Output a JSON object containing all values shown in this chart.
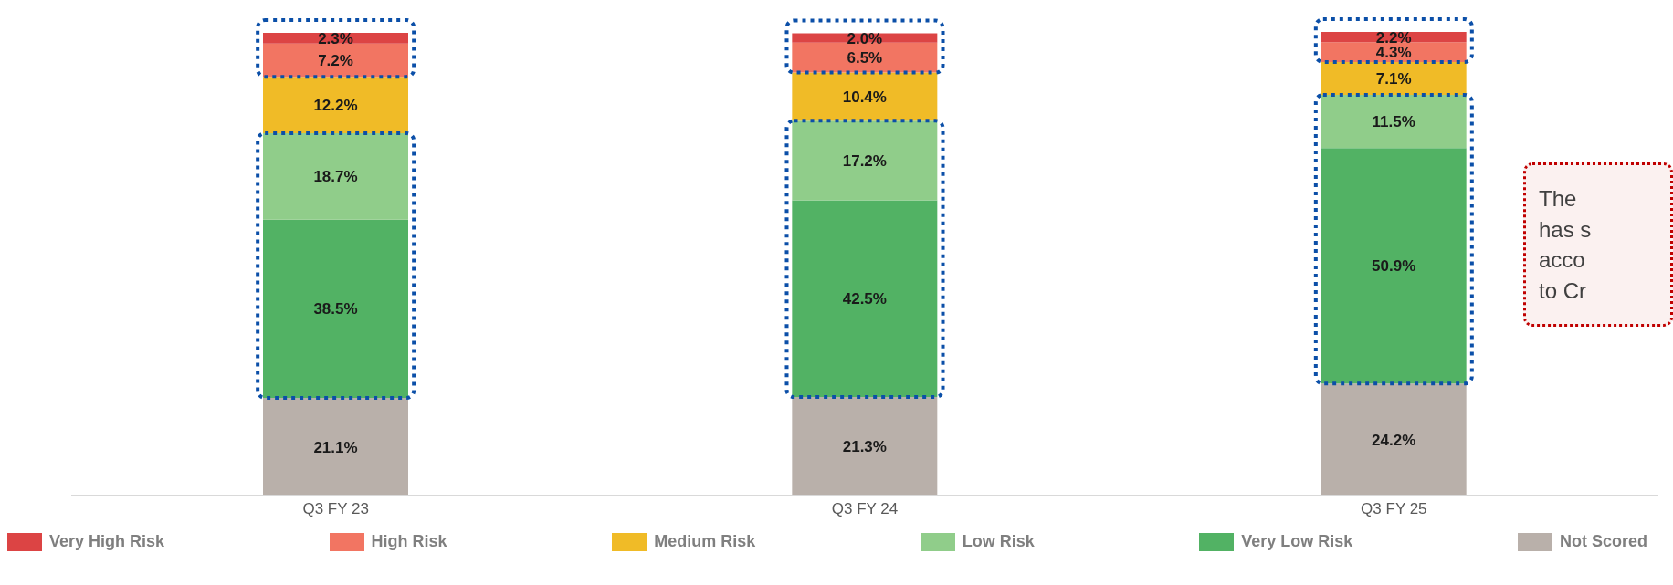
{
  "chart_data": {
    "type": "bar",
    "stacked": true,
    "data_labels": true,
    "legend": "bottom",
    "categories": [
      "Q3 FY 23",
      "Q3 FY 24",
      "Q3 FY 25"
    ],
    "series": [
      {
        "name": "Not Scored",
        "color": "#b9b0aa",
        "values": [
          21.1,
          21.3,
          24.2
        ],
        "value_labels": [
          "21.1%",
          "21.3%",
          "24.2%"
        ]
      },
      {
        "name": "Very Low Risk",
        "color": "#52b264",
        "values": [
          38.5,
          42.5,
          50.9
        ],
        "value_labels": [
          "38.5%",
          "42.5%",
          "50.9%"
        ]
      },
      {
        "name": "Low Risk",
        "color": "#90cd8a",
        "values": [
          18.7,
          17.2,
          11.5
        ],
        "value_labels": [
          "18.7%",
          "17.2%",
          "11.5%"
        ]
      },
      {
        "name": "Medium Risk",
        "color": "#f0bb27",
        "values": [
          12.2,
          10.4,
          7.1
        ],
        "value_labels": [
          "12.2%",
          "10.4%",
          "7.1%"
        ]
      },
      {
        "name": "High Risk",
        "color": "#f27562",
        "values": [
          7.2,
          6.5,
          4.3
        ],
        "value_labels": [
          "7.2%",
          "6.5%",
          "4.3%"
        ]
      },
      {
        "name": "Very High Risk",
        "color": "#dc4444",
        "values": [
          2.3,
          2.0,
          2.2
        ],
        "value_labels": [
          "2.3%",
          "2.0%",
          "2.2%"
        ]
      }
    ],
    "annotations": [
      "The\nhas s\nacco\nto Cr"
    ]
  }
}
